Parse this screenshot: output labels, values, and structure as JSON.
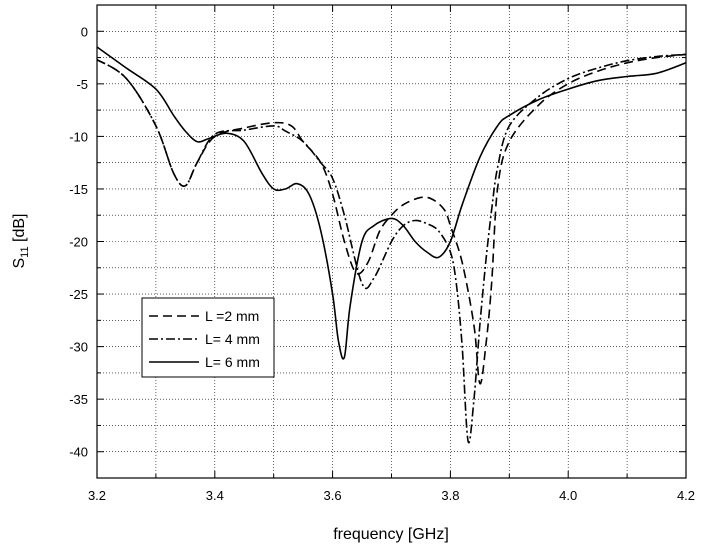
{
  "chart_data": {
    "type": "line",
    "title": "",
    "xlabel": "frequency [GHz]",
    "ylabel_main": "S",
    "ylabel_sub": "11",
    "ylabel_unit": " [dB]",
    "xlim": [
      3.2,
      4.2
    ],
    "ylim": [
      -42.5,
      2.5
    ],
    "x_ticks": [
      3.2,
      3.4,
      3.6,
      3.8,
      4.0,
      4.2
    ],
    "x_tick_labels": [
      "3.2",
      "3.4",
      "3.6",
      "3.8",
      "4.0",
      "4.2"
    ],
    "y_ticks": [
      0,
      -5,
      -10,
      -15,
      -20,
      -25,
      -30,
      -35,
      -40
    ],
    "y_tick_labels": [
      "0",
      "-5",
      "-10",
      "-15",
      "-20",
      "-25",
      "-30",
      "-35",
      "-40"
    ],
    "grid": true,
    "legend_position": "lower-left",
    "series": [
      {
        "name": "L =2 mm",
        "dash": "9 5",
        "x": [
          3.2,
          3.25,
          3.3,
          3.33,
          3.35,
          3.37,
          3.4,
          3.45,
          3.5,
          3.53,
          3.55,
          3.58,
          3.6,
          3.62,
          3.64,
          3.66,
          3.68,
          3.7,
          3.72,
          3.75,
          3.77,
          3.79,
          3.8,
          3.82,
          3.84,
          3.85,
          3.86,
          3.87,
          3.88,
          3.9,
          3.95,
          4.0,
          4.05,
          4.1,
          4.15,
          4.2
        ],
        "y": [
          -2.7,
          -4.5,
          -9.0,
          -13.5,
          -14.7,
          -12.5,
          -10.0,
          -9.2,
          -8.7,
          -9.0,
          -10.5,
          -12.5,
          -15.5,
          -20.0,
          -23.0,
          -22.0,
          -19.0,
          -17.5,
          -16.5,
          -15.8,
          -16.0,
          -17.0,
          -18.5,
          -22.0,
          -28.0,
          -33.5,
          -30.0,
          -24.0,
          -15.0,
          -10.5,
          -7.0,
          -5.0,
          -3.8,
          -3.0,
          -2.5,
          -2.2
        ]
      },
      {
        "name": "L= 4 mm",
        "dash": "9 3 2 3",
        "x": [
          3.2,
          3.25,
          3.3,
          3.33,
          3.35,
          3.37,
          3.4,
          3.45,
          3.5,
          3.52,
          3.55,
          3.58,
          3.6,
          3.62,
          3.65,
          3.67,
          3.7,
          3.72,
          3.74,
          3.76,
          3.78,
          3.8,
          3.81,
          3.82,
          3.83,
          3.84,
          3.85,
          3.86,
          3.87,
          3.88,
          3.9,
          3.95,
          4.0,
          4.05,
          4.1,
          4.15,
          4.2
        ],
        "y": [
          -2.7,
          -4.5,
          -9.0,
          -13.5,
          -14.7,
          -12.5,
          -9.8,
          -9.4,
          -9.0,
          -9.5,
          -10.5,
          -12.5,
          -14.0,
          -17.5,
          -24.0,
          -23.5,
          -20.0,
          -18.5,
          -18.0,
          -18.3,
          -19.0,
          -21.0,
          -24.0,
          -30.0,
          -39.0,
          -35.0,
          -28.0,
          -22.0,
          -17.0,
          -13.0,
          -9.0,
          -6.2,
          -4.5,
          -3.5,
          -2.8,
          -2.4,
          -2.2
        ]
      },
      {
        "name": "L= 6 mm",
        "dash": "",
        "x": [
          3.2,
          3.25,
          3.3,
          3.33,
          3.35,
          3.37,
          3.39,
          3.42,
          3.45,
          3.48,
          3.5,
          3.52,
          3.54,
          3.56,
          3.58,
          3.6,
          3.61,
          3.62,
          3.63,
          3.65,
          3.67,
          3.7,
          3.72,
          3.74,
          3.76,
          3.78,
          3.8,
          3.82,
          3.85,
          3.88,
          3.9,
          3.95,
          4.0,
          4.05,
          4.1,
          4.15,
          4.2
        ],
        "y": [
          -1.5,
          -3.5,
          -5.5,
          -8.0,
          -9.5,
          -10.5,
          -10.2,
          -9.7,
          -10.5,
          -13.5,
          -15.0,
          -15.0,
          -14.5,
          -15.5,
          -19.0,
          -25.0,
          -29.5,
          -31.0,
          -26.0,
          -20.0,
          -18.5,
          -17.8,
          -18.5,
          -20.0,
          -21.0,
          -21.5,
          -20.0,
          -16.5,
          -12.0,
          -9.0,
          -8.0,
          -6.5,
          -5.5,
          -4.7,
          -4.3,
          -4.0,
          -3.0
        ]
      }
    ]
  }
}
